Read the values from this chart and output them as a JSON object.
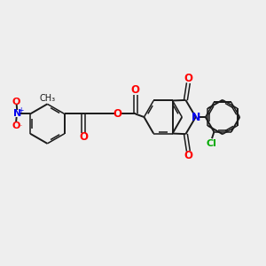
{
  "background_color": "#eeeeee",
  "bond_color": "#1a1a1a",
  "atom_colors": {
    "O": "#ff0000",
    "N": "#0000ee",
    "Cl": "#00aa00",
    "C": "#1a1a1a"
  },
  "figsize": [
    3.0,
    3.0
  ],
  "dpi": 100,
  "xlim": [
    0,
    10
  ],
  "ylim": [
    0,
    10
  ]
}
